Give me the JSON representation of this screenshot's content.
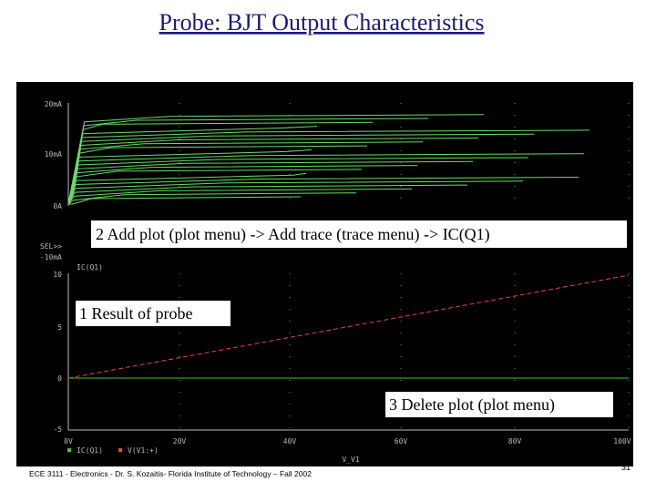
{
  "title": "Probe: BJT Output Characteristics",
  "plot": {
    "upper_y_labels": [
      "20mA",
      "10mA",
      "0A",
      "SEL>>",
      "-10mA"
    ],
    "trace_label": "IC(Q1)",
    "lower_y_labels": [
      "10",
      "5",
      "0",
      "-5"
    ],
    "x_labels": [
      "0V",
      "20V",
      "40V",
      "60V",
      "80V",
      "100V"
    ],
    "x_axis_label": "V_V1",
    "legend": [
      "IC(Q1)",
      "V(V1:+)"
    ]
  },
  "annotations": [
    "2 Add plot (plot menu) -> Add trace (trace menu) -> IC(Q1)",
    "1 Result of probe",
    "3 Delete plot (plot menu)"
  ],
  "footer": "ECE 3111 - Electronics - Dr. S. Kozaitis- Florida Institute of Technology – Fall 2002",
  "page_number": "31"
}
